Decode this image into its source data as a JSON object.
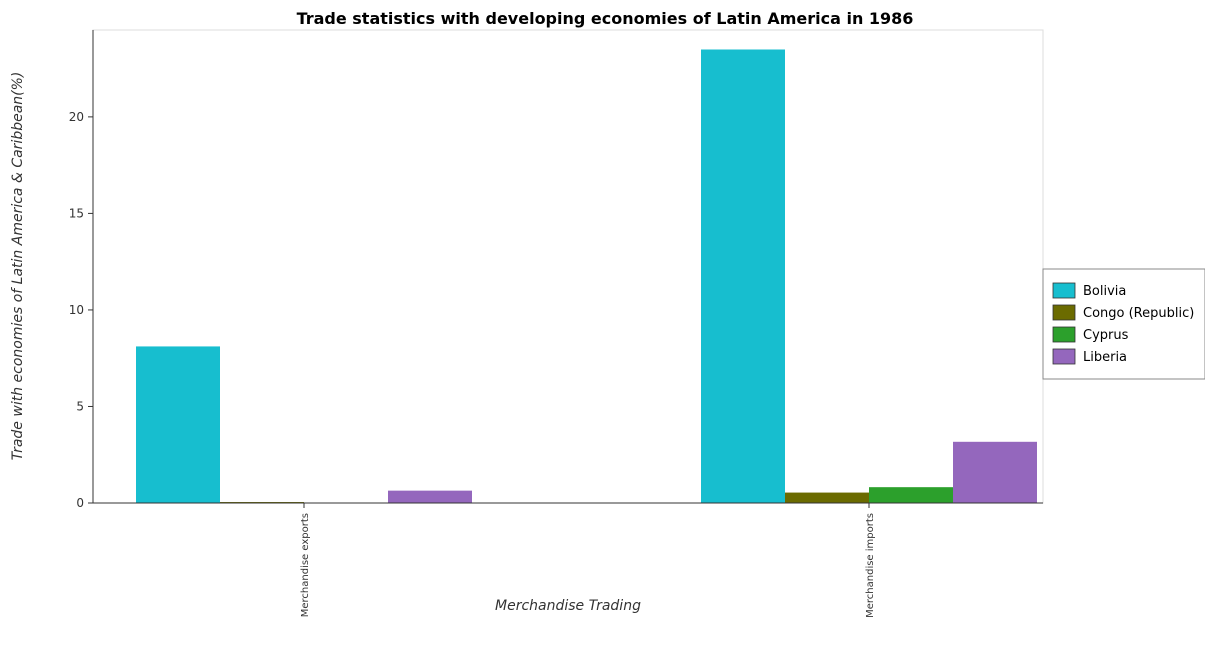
{
  "chart_data": {
    "type": "bar",
    "title": "Trade statistics with developing economies of Latin America in 1986",
    "xlabel": "Merchandise Trading",
    "ylabel": "Trade with economies of Latin America & Caribbean(%)",
    "categories": [
      "Merchandise exports",
      "Merchandise imports"
    ],
    "series": [
      {
        "name": "Bolivia",
        "color": "#17becf",
        "values": [
          8.11,
          23.49
        ]
      },
      {
        "name": "Congo (Republic)",
        "color": "#6b6b00",
        "values": [
          0.05,
          0.54
        ]
      },
      {
        "name": "Cyprus",
        "color": "#2ca02c",
        "values": [
          0.01,
          0.82
        ]
      },
      {
        "name": "Liberia",
        "color": "#9467bd",
        "values": [
          0.64,
          3.17
        ]
      }
    ],
    "ylim": [
      0,
      24.5
    ],
    "yticks": [
      0,
      5,
      10,
      15,
      20
    ],
    "grid": false,
    "legend_position": "right"
  }
}
